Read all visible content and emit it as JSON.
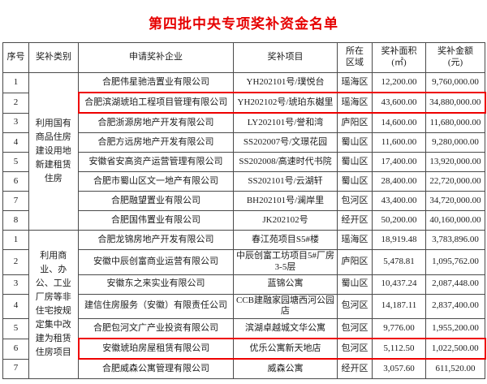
{
  "page": {
    "title": "第四批中央专项奖补资金名单",
    "title_color": "#e60000"
  },
  "table": {
    "highlight_color": "#ee0000",
    "headers": [
      [
        "序号"
      ],
      [
        "奖补类别"
      ],
      [
        "申请奖补企业"
      ],
      [
        "奖补项目"
      ],
      [
        "所在",
        "区域"
      ],
      [
        "奖补面积",
        "(㎡)"
      ],
      [
        "奖补金额",
        "(元)"
      ]
    ],
    "sections": [
      {
        "category": "利用国有商品住房建设用地新建租赁住房",
        "rows": [
          {
            "no": "1",
            "company": "合肥伟星驰浩置业有限公司",
            "project": "YH202101号/璞悦台",
            "region": "瑶海区",
            "area": "12,200.00",
            "amount": "9,760,000.00",
            "highlight": false
          },
          {
            "no": "2",
            "company": "合肥滨湖琥珀工程项目管理有限公司",
            "project": "YH202102号/琥珀东樾里",
            "region": "瑶海区",
            "area": "43,600.00",
            "amount": "34,880,000.00",
            "highlight": true
          },
          {
            "no": "3",
            "company": "合肥浙源房地产开发有限公司",
            "project": "LY202101号/誉和湾",
            "region": "庐阳区",
            "area": "14,600.00",
            "amount": "11,680,000.00",
            "highlight": false
          },
          {
            "no": "4",
            "company": "合肥方远房地产开发有限公司",
            "project": "SS202007号/文璟花园",
            "region": "蜀山区",
            "area": "11,600.00",
            "amount": "9,280,000.00",
            "highlight": false
          },
          {
            "no": "5",
            "company": "安徽省安高资产运营管理有限公司",
            "project": "SS202008/高速时代书院",
            "region": "蜀山区",
            "area": "17,400.00",
            "amount": "13,920,000.00",
            "highlight": false
          },
          {
            "no": "6",
            "company": "合肥市蜀山区文一地产有限公司",
            "project": "SS202101号/云湖轩",
            "region": "蜀山区",
            "area": "28,400.00",
            "amount": "22,720,000.00",
            "highlight": false
          },
          {
            "no": "7",
            "company": "合肥融望置业有限公司",
            "project": "BH202101号/澜岸里",
            "region": "包河区",
            "area": "43,400.00",
            "amount": "34,720,000.00",
            "highlight": false
          },
          {
            "no": "8",
            "company": "合肥国伟置业有限公司",
            "project": "JK202102号",
            "region": "经开区",
            "area": "50,200.00",
            "amount": "40,160,000.00",
            "highlight": false
          }
        ]
      },
      {
        "category": "利用商业、办公、工业厂房等非住宅按规定集中改建为租赁住房项目",
        "rows": [
          {
            "no": "1",
            "company": "合肥龙锦房地产开发有限公司",
            "project": "春江苑项目S5#楼",
            "region": "瑶海区",
            "area": "18,919.48",
            "amount": "3,783,896.00",
            "highlight": false
          },
          {
            "no": "2",
            "company": "安徽中辰创富商业运营有限公司",
            "project": "中辰创富工坊项目5#厂房3-5层",
            "region": "庐阳区",
            "area": "5,478.81",
            "amount": "1,095,762.00",
            "highlight": false
          },
          {
            "no": "3",
            "company": "安徽东之来实业有限公司",
            "project": "蓝锦公寓",
            "region": "蜀山区",
            "area": "10,437.24",
            "amount": "2,087,448.00",
            "highlight": false
          },
          {
            "no": "4",
            "company": "建信住房服务（安徽）有限责任公司",
            "project": "CCB建融家园塘西河公园店",
            "region": "包河区",
            "area": "14,187.11",
            "amount": "2,837,400.00",
            "highlight": false
          },
          {
            "no": "5",
            "company": "合肥包河文广产业投资有限公司",
            "project": "滨湖卓越城文华公寓",
            "region": "包河区",
            "area": "9,776.00",
            "amount": "1,955,200.00",
            "highlight": false
          },
          {
            "no": "6",
            "company": "安徽琥珀房屋租赁有限公司",
            "project": "优乐公寓新天地店",
            "region": "包河区",
            "area": "5,112.50",
            "amount": "1,022,500.00",
            "highlight": true
          },
          {
            "no": "7",
            "company": "合肥威森公寓管理有限公司",
            "project": "威森公寓",
            "region": "经开区",
            "area": "3,057.60",
            "amount": "611,520.00",
            "highlight": false
          }
        ]
      }
    ]
  }
}
